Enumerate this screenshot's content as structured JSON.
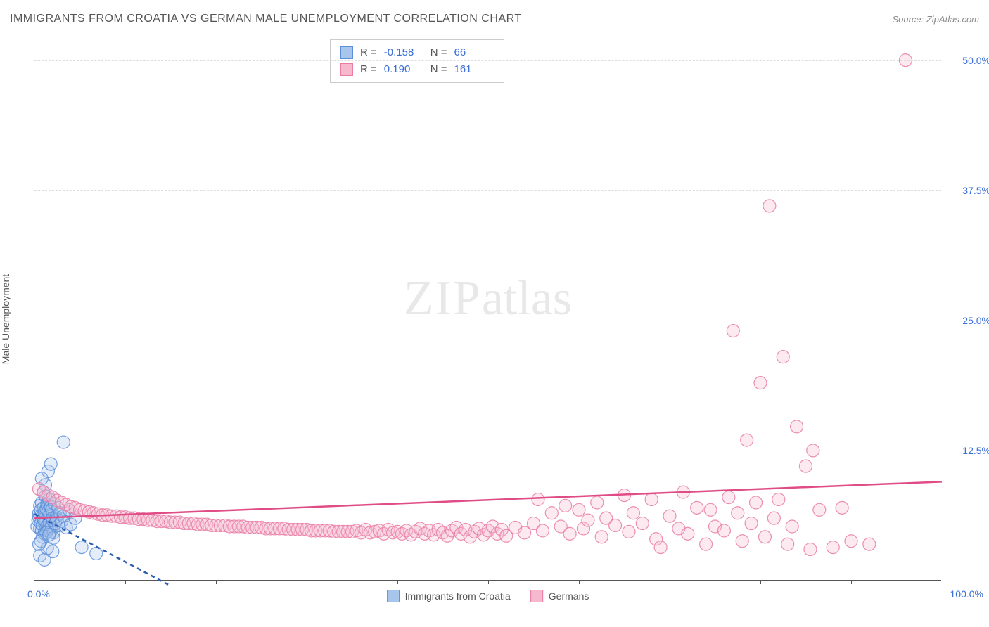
{
  "title": "IMMIGRANTS FROM CROATIA VS GERMAN MALE UNEMPLOYMENT CORRELATION CHART",
  "source": "Source: ZipAtlas.com",
  "ylabel": "Male Unemployment",
  "watermark": {
    "zip": "ZIP",
    "atlas": "atlas"
  },
  "chart": {
    "type": "scatter",
    "xlim": [
      0,
      100
    ],
    "ylim": [
      0,
      52
    ],
    "x_axis_label_min": "0.0%",
    "x_axis_label_max": "100.0%",
    "y_ticks": [
      {
        "value": 12.5,
        "label": "12.5%"
      },
      {
        "value": 25.0,
        "label": "25.0%"
      },
      {
        "value": 37.5,
        "label": "37.5%"
      },
      {
        "value": 50.0,
        "label": "50.0%"
      }
    ],
    "x_tick_step": 10,
    "grid_color": "#dddddd",
    "axis_color": "#555555",
    "background_color": "#ffffff",
    "marker_radius": 9,
    "marker_fill_opacity": 0.3,
    "marker_stroke_opacity": 0.85,
    "marker_stroke_width": 1.2,
    "trendline_width": 2.5,
    "series": [
      {
        "name": "Immigrants from Croatia",
        "color": "#5b8fd9",
        "fill": "#a8c5ec",
        "R": "-0.158",
        "N": "66",
        "trendline": {
          "x1": 0,
          "y1": 6.4,
          "x2": 15,
          "y2": -0.5,
          "dashed": true,
          "color": "#2a5db0"
        },
        "data": [
          [
            0.3,
            5.2
          ],
          [
            0.4,
            5.8
          ],
          [
            0.5,
            6.1
          ],
          [
            0.5,
            6.5
          ],
          [
            0.6,
            5.0
          ],
          [
            0.6,
            7.2
          ],
          [
            0.7,
            5.5
          ],
          [
            0.7,
            6.8
          ],
          [
            0.8,
            4.8
          ],
          [
            0.8,
            7.5
          ],
          [
            0.9,
            5.3
          ],
          [
            0.9,
            6.2
          ],
          [
            1.0,
            5.9
          ],
          [
            1.0,
            7.0
          ],
          [
            1.1,
            4.5
          ],
          [
            1.1,
            6.6
          ],
          [
            1.2,
            5.7
          ],
          [
            1.2,
            8.1
          ],
          [
            1.3,
            5.1
          ],
          [
            1.3,
            6.9
          ],
          [
            1.4,
            4.9
          ],
          [
            1.4,
            7.3
          ],
          [
            1.5,
            5.4
          ],
          [
            1.5,
            6.7
          ],
          [
            1.6,
            5.0
          ],
          [
            1.6,
            7.8
          ],
          [
            1.7,
            5.6
          ],
          [
            1.7,
            6.3
          ],
          [
            1.8,
            4.7
          ],
          [
            1.8,
            7.1
          ],
          [
            1.9,
            5.2
          ],
          [
            1.9,
            6.8
          ],
          [
            2.0,
            5.8
          ],
          [
            2.0,
            6.0
          ],
          [
            2.1,
            4.6
          ],
          [
            2.2,
            7.4
          ],
          [
            2.3,
            5.5
          ],
          [
            2.4,
            6.1
          ],
          [
            2.5,
            5.9
          ],
          [
            2.6,
            7.0
          ],
          [
            2.7,
            5.3
          ],
          [
            2.8,
            6.5
          ],
          [
            3.0,
            5.7
          ],
          [
            3.2,
            6.2
          ],
          [
            3.5,
            5.1
          ],
          [
            3.8,
            6.8
          ],
          [
            4.0,
            5.4
          ],
          [
            4.5,
            6.0
          ],
          [
            1.0,
            8.5
          ],
          [
            1.2,
            9.2
          ],
          [
            0.8,
            9.8
          ],
          [
            1.5,
            10.5
          ],
          [
            1.8,
            11.2
          ],
          [
            0.6,
            2.4
          ],
          [
            1.1,
            2.0
          ],
          [
            2.0,
            2.8
          ],
          [
            1.4,
            3.1
          ],
          [
            3.2,
            13.3
          ],
          [
            5.2,
            3.2
          ],
          [
            6.8,
            2.6
          ],
          [
            0.9,
            4.2
          ],
          [
            1.3,
            4.6
          ],
          [
            0.7,
            3.8
          ],
          [
            2.1,
            4.1
          ],
          [
            1.6,
            4.4
          ],
          [
            0.5,
            3.5
          ]
        ]
      },
      {
        "name": "Germans",
        "color": "#e97ba5",
        "fill": "#f5b8cd",
        "R": "0.190",
        "N": "161",
        "trendline": {
          "x1": 0,
          "y1": 6.0,
          "x2": 100,
          "y2": 9.5,
          "dashed": false,
          "color": "#e04d86"
        },
        "data": [
          [
            0.5,
            8.8
          ],
          [
            1.0,
            8.5
          ],
          [
            1.5,
            8.2
          ],
          [
            2.0,
            8.0
          ],
          [
            2.5,
            7.7
          ],
          [
            3.0,
            7.5
          ],
          [
            3.5,
            7.3
          ],
          [
            4.0,
            7.1
          ],
          [
            4.5,
            7.0
          ],
          [
            5.0,
            6.8
          ],
          [
            5.5,
            6.7
          ],
          [
            6.0,
            6.6
          ],
          [
            6.5,
            6.5
          ],
          [
            7.0,
            6.4
          ],
          [
            7.5,
            6.3
          ],
          [
            8.0,
            6.3
          ],
          [
            8.5,
            6.2
          ],
          [
            9.0,
            6.2
          ],
          [
            9.5,
            6.1
          ],
          [
            10.0,
            6.1
          ],
          [
            10.5,
            6.0
          ],
          [
            11.0,
            6.0
          ],
          [
            11.5,
            5.9
          ],
          [
            12.0,
            5.9
          ],
          [
            12.5,
            5.8
          ],
          [
            13.0,
            5.8
          ],
          [
            13.5,
            5.7
          ],
          [
            14.0,
            5.7
          ],
          [
            14.5,
            5.7
          ],
          [
            15.0,
            5.6
          ],
          [
            15.5,
            5.6
          ],
          [
            16.0,
            5.6
          ],
          [
            16.5,
            5.5
          ],
          [
            17.0,
            5.5
          ],
          [
            17.5,
            5.5
          ],
          [
            18.0,
            5.4
          ],
          [
            18.5,
            5.4
          ],
          [
            19.0,
            5.4
          ],
          [
            19.5,
            5.3
          ],
          [
            20.0,
            5.3
          ],
          [
            20.5,
            5.3
          ],
          [
            21.0,
            5.3
          ],
          [
            21.5,
            5.2
          ],
          [
            22.0,
            5.2
          ],
          [
            22.5,
            5.2
          ],
          [
            23.0,
            5.2
          ],
          [
            23.5,
            5.1
          ],
          [
            24.0,
            5.1
          ],
          [
            24.5,
            5.1
          ],
          [
            25.0,
            5.1
          ],
          [
            25.5,
            5.0
          ],
          [
            26.0,
            5.0
          ],
          [
            26.5,
            5.0
          ],
          [
            27.0,
            5.0
          ],
          [
            27.5,
            5.0
          ],
          [
            28.0,
            4.9
          ],
          [
            28.5,
            4.9
          ],
          [
            29.0,
            4.9
          ],
          [
            29.5,
            4.9
          ],
          [
            30.0,
            4.9
          ],
          [
            30.5,
            4.8
          ],
          [
            31.0,
            4.8
          ],
          [
            31.5,
            4.8
          ],
          [
            32.0,
            4.8
          ],
          [
            32.5,
            4.8
          ],
          [
            33.0,
            4.7
          ],
          [
            33.5,
            4.7
          ],
          [
            34.0,
            4.7
          ],
          [
            34.5,
            4.7
          ],
          [
            35.0,
            4.7
          ],
          [
            35.5,
            4.8
          ],
          [
            36.0,
            4.6
          ],
          [
            36.5,
            4.9
          ],
          [
            37.0,
            4.6
          ],
          [
            37.5,
            4.7
          ],
          [
            38.0,
            4.8
          ],
          [
            38.5,
            4.5
          ],
          [
            39.0,
            4.9
          ],
          [
            39.5,
            4.6
          ],
          [
            40.0,
            4.7
          ],
          [
            40.5,
            4.5
          ],
          [
            41.0,
            4.8
          ],
          [
            41.5,
            4.4
          ],
          [
            42.0,
            4.7
          ],
          [
            42.5,
            5.0
          ],
          [
            43.0,
            4.5
          ],
          [
            43.5,
            4.8
          ],
          [
            44.0,
            4.4
          ],
          [
            44.5,
            4.9
          ],
          [
            45.0,
            4.6
          ],
          [
            45.5,
            4.3
          ],
          [
            46.0,
            4.8
          ],
          [
            46.5,
            5.1
          ],
          [
            47.0,
            4.5
          ],
          [
            47.5,
            4.9
          ],
          [
            48.0,
            4.2
          ],
          [
            48.5,
            4.7
          ],
          [
            49.0,
            5.0
          ],
          [
            49.5,
            4.4
          ],
          [
            50.0,
            4.8
          ],
          [
            50.5,
            5.2
          ],
          [
            51.0,
            4.5
          ],
          [
            51.5,
            4.9
          ],
          [
            52.0,
            4.3
          ],
          [
            53.0,
            5.1
          ],
          [
            54.0,
            4.6
          ],
          [
            55.0,
            5.5
          ],
          [
            55.5,
            7.8
          ],
          [
            56.0,
            4.8
          ],
          [
            57.0,
            6.5
          ],
          [
            58.0,
            5.2
          ],
          [
            58.5,
            7.2
          ],
          [
            59.0,
            4.5
          ],
          [
            60.0,
            6.8
          ],
          [
            60.5,
            5.0
          ],
          [
            61.0,
            5.8
          ],
          [
            62.0,
            7.5
          ],
          [
            62.5,
            4.2
          ],
          [
            63.0,
            6.0
          ],
          [
            64.0,
            5.3
          ],
          [
            65.0,
            8.2
          ],
          [
            65.5,
            4.7
          ],
          [
            66.0,
            6.5
          ],
          [
            67.0,
            5.5
          ],
          [
            68.0,
            7.8
          ],
          [
            68.5,
            4.0
          ],
          [
            69.0,
            3.2
          ],
          [
            70.0,
            6.2
          ],
          [
            71.0,
            5.0
          ],
          [
            71.5,
            8.5
          ],
          [
            72.0,
            4.5
          ],
          [
            73.0,
            7.0
          ],
          [
            74.0,
            3.5
          ],
          [
            74.5,
            6.8
          ],
          [
            75.0,
            5.2
          ],
          [
            76.0,
            4.8
          ],
          [
            76.5,
            8.0
          ],
          [
            77.0,
            24.0
          ],
          [
            77.5,
            6.5
          ],
          [
            78.0,
            3.8
          ],
          [
            78.5,
            13.5
          ],
          [
            79.0,
            5.5
          ],
          [
            79.5,
            7.5
          ],
          [
            80.0,
            19.0
          ],
          [
            80.5,
            4.2
          ],
          [
            81.0,
            36.0
          ],
          [
            81.5,
            6.0
          ],
          [
            82.0,
            7.8
          ],
          [
            82.5,
            21.5
          ],
          [
            83.0,
            3.5
          ],
          [
            83.5,
            5.2
          ],
          [
            84.0,
            14.8
          ],
          [
            85.0,
            11.0
          ],
          [
            85.5,
            3.0
          ],
          [
            85.8,
            12.5
          ],
          [
            86.5,
            6.8
          ],
          [
            88.0,
            3.2
          ],
          [
            89.0,
            7.0
          ],
          [
            90.0,
            3.8
          ],
          [
            92.0,
            3.5
          ],
          [
            96.0,
            50.0
          ]
        ]
      }
    ]
  },
  "legend": {
    "series1_label": "Immigrants from Croatia",
    "series2_label": "Germans"
  }
}
